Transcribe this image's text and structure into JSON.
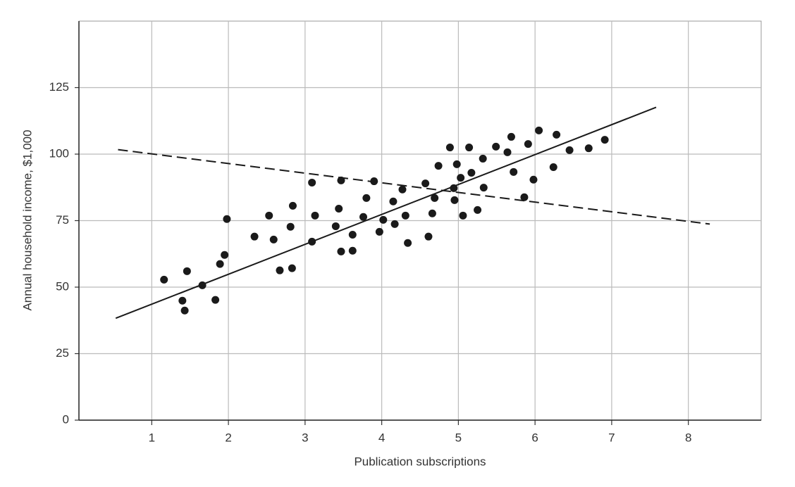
{
  "chart_data": {
    "type": "scatter",
    "xlabel": "Publication subscriptions",
    "ylabel": "Annual household income, $1,000",
    "xlim": [
      0.05,
      8.95
    ],
    "ylim": [
      0,
      150
    ],
    "xticks": [
      1,
      2,
      3,
      4,
      5,
      6,
      7,
      8
    ],
    "yticks": [
      0,
      25,
      50,
      75,
      100,
      125
    ],
    "grid": true,
    "series": [
      {
        "mode": "markers",
        "color": "#1a1a1a",
        "x": [
          1.16,
          1.4,
          1.43,
          1.46,
          1.66,
          1.83,
          1.89,
          1.95,
          1.98,
          2.34,
          2.53,
          2.59,
          2.67,
          2.81,
          2.83,
          2.84,
          3.09,
          3.09,
          3.13,
          3.4,
          3.44,
          3.47,
          3.47,
          3.62,
          3.62,
          3.76,
          3.8,
          3.9,
          3.97,
          4.02,
          4.15,
          4.17,
          4.27,
          4.31,
          4.34,
          4.57,
          4.61,
          4.66,
          4.69,
          4.74,
          4.89,
          4.94,
          4.95,
          4.98,
          5.03,
          5.06,
          5.14,
          5.17,
          5.25,
          5.32,
          5.33,
          5.49,
          5.64,
          5.69,
          5.72,
          5.86,
          5.91,
          5.98,
          6.05,
          6.24,
          6.28,
          6.45,
          6.7,
          6.91
        ],
        "y": [
          52.8,
          44.9,
          41.2,
          56.0,
          50.7,
          45.2,
          58.7,
          62.1,
          75.6,
          69.0,
          76.9,
          67.9,
          56.3,
          72.7,
          57.1,
          80.6,
          89.3,
          67.1,
          76.9,
          72.9,
          79.5,
          90.1,
          63.4,
          69.7,
          63.7,
          76.4,
          83.5,
          89.8,
          70.8,
          75.3,
          82.2,
          73.7,
          86.7,
          76.9,
          66.6,
          89.0,
          69.0,
          77.7,
          83.5,
          95.6,
          102.5,
          87.2,
          82.7,
          96.2,
          91.1,
          76.9,
          102.5,
          93.0,
          79.0,
          98.3,
          87.4,
          102.8,
          100.7,
          106.5,
          93.3,
          83.8,
          103.8,
          90.4,
          108.9,
          95.1,
          107.3,
          101.5,
          102.2,
          105.4
        ]
      },
      {
        "mode": "line",
        "dash": false,
        "color": "#1a1a1a",
        "x": [
          0.53,
          7.58
        ],
        "y": [
          38.3,
          117.6
        ]
      },
      {
        "mode": "line",
        "dash": true,
        "color": "#1a1a1a",
        "x": [
          0.56,
          8.28
        ],
        "y": [
          101.7,
          73.7
        ]
      }
    ]
  }
}
